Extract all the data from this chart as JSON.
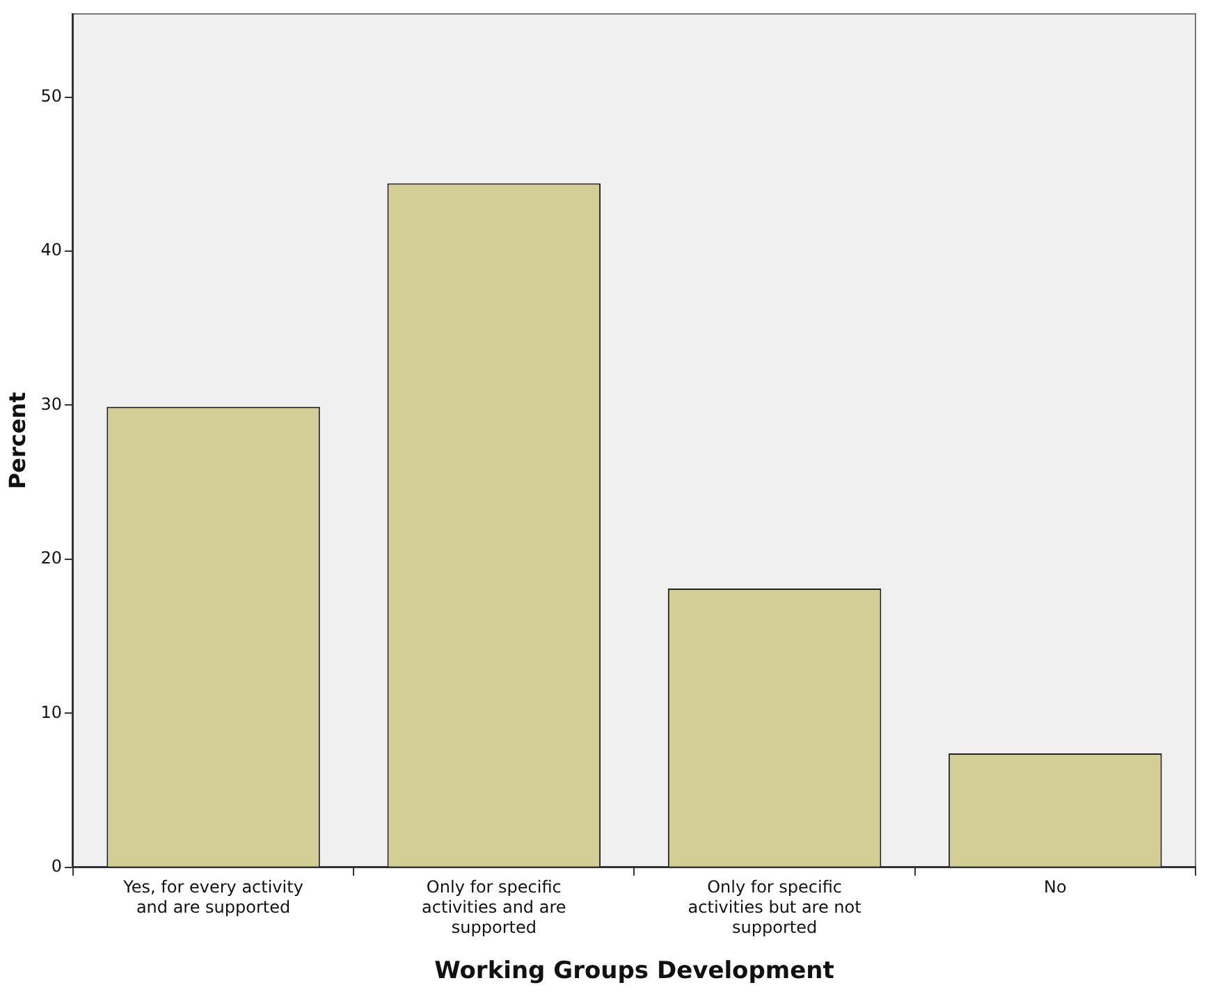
{
  "chart_data": {
    "type": "bar",
    "xlabel": "Working Groups Development",
    "ylabel": "Percent",
    "categories": [
      "Yes, for every activity and are supported",
      "Only for specific activities and are supported",
      "Only for specific activities but are not supported",
      "No"
    ],
    "values": [
      29.9,
      44.4,
      18.1,
      7.4
    ],
    "color": "#d3cd96",
    "ylim": [
      0,
      55.4
    ],
    "yticks": [
      0,
      10,
      20,
      30,
      40,
      50
    ],
    "grid": false,
    "legend": false
  }
}
